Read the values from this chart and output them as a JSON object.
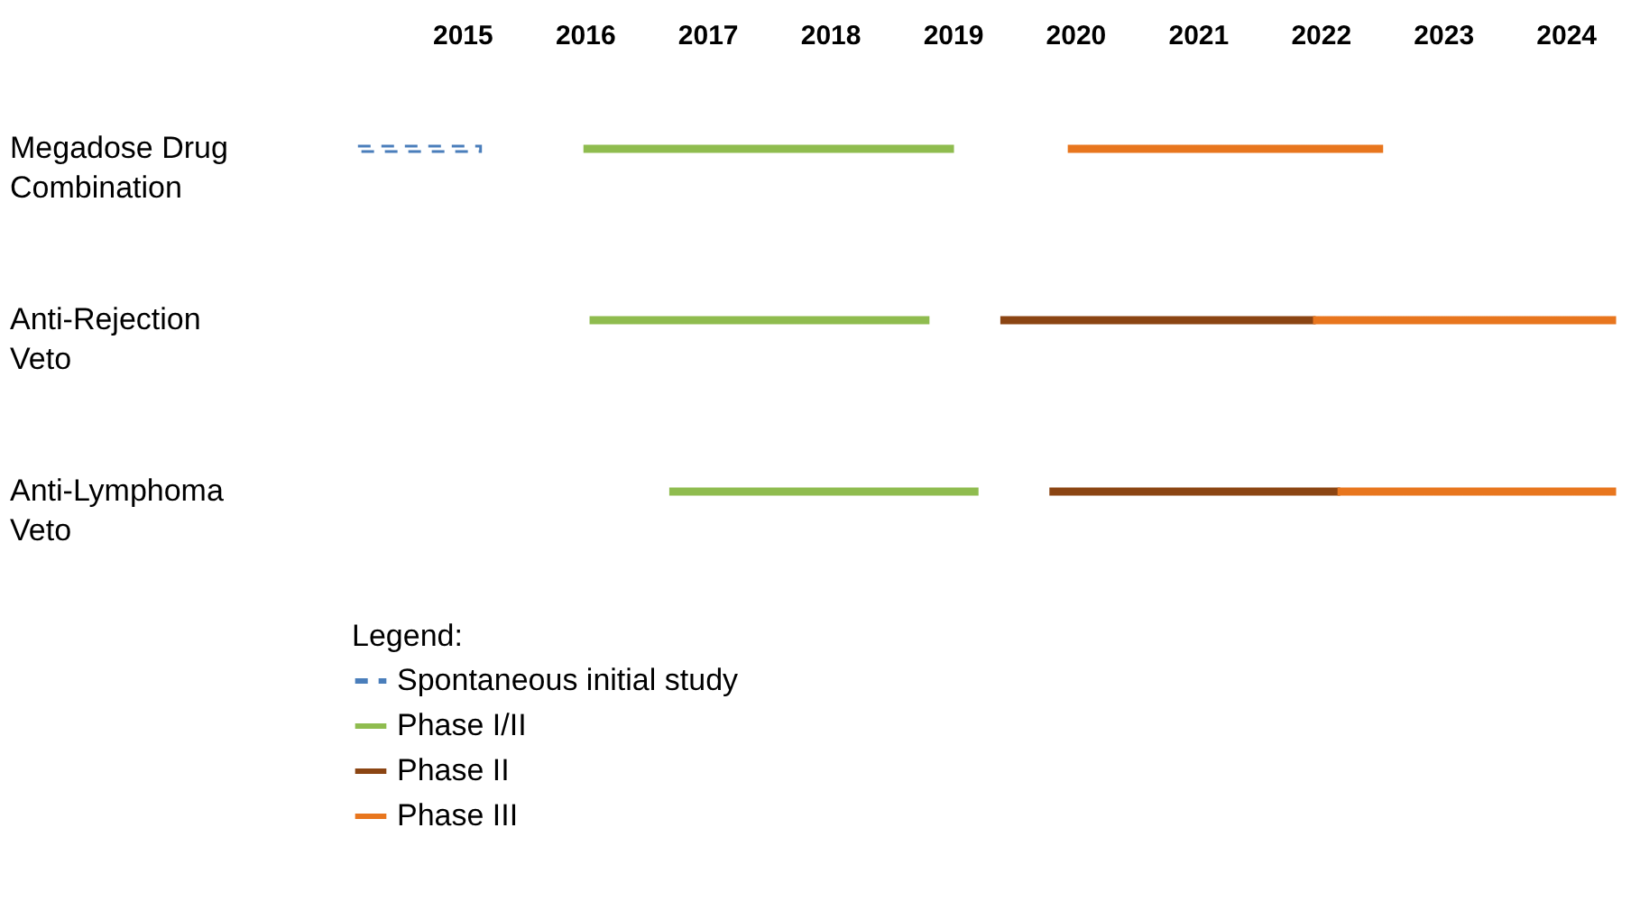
{
  "chart_data": {
    "type": "bar",
    "orientation": "horizontal",
    "categories": [
      "Megadose Drug\nCombination",
      "Anti-Rejection\nVeto",
      "Anti-Lymphoma\nVeto"
    ],
    "xlim": [
      2014.1,
      2024.4
    ],
    "xticks": [
      2015,
      2016,
      2017,
      2018,
      2019,
      2020,
      2021,
      2022,
      2023,
      2024
    ],
    "grid": false,
    "legend": "bottom",
    "legend_title": "Legend:",
    "series": [
      {
        "name": "Spontaneous initial study",
        "color": "#4a7ebb",
        "line_style": "dashed",
        "base": [
          2014.15,
          null,
          null
        ],
        "values": [
          1.0,
          null,
          null
        ]
      },
      {
        "name": "Phase I/II",
        "color": "#8fbc4f",
        "base": [
          2016.0,
          2016.05,
          2016.7
        ],
        "values": [
          3.0,
          2.75,
          2.5
        ]
      },
      {
        "name": "Phase II",
        "color": "#8b4513",
        "base": [
          null,
          2019.4,
          2019.8
        ],
        "values": [
          null,
          2.55,
          2.35
        ]
      },
      {
        "name": "Phase III",
        "color": "#e8761e",
        "base": [
          2019.95,
          2021.95,
          2022.15
        ],
        "values": [
          2.55,
          2.45,
          2.25
        ]
      }
    ]
  }
}
